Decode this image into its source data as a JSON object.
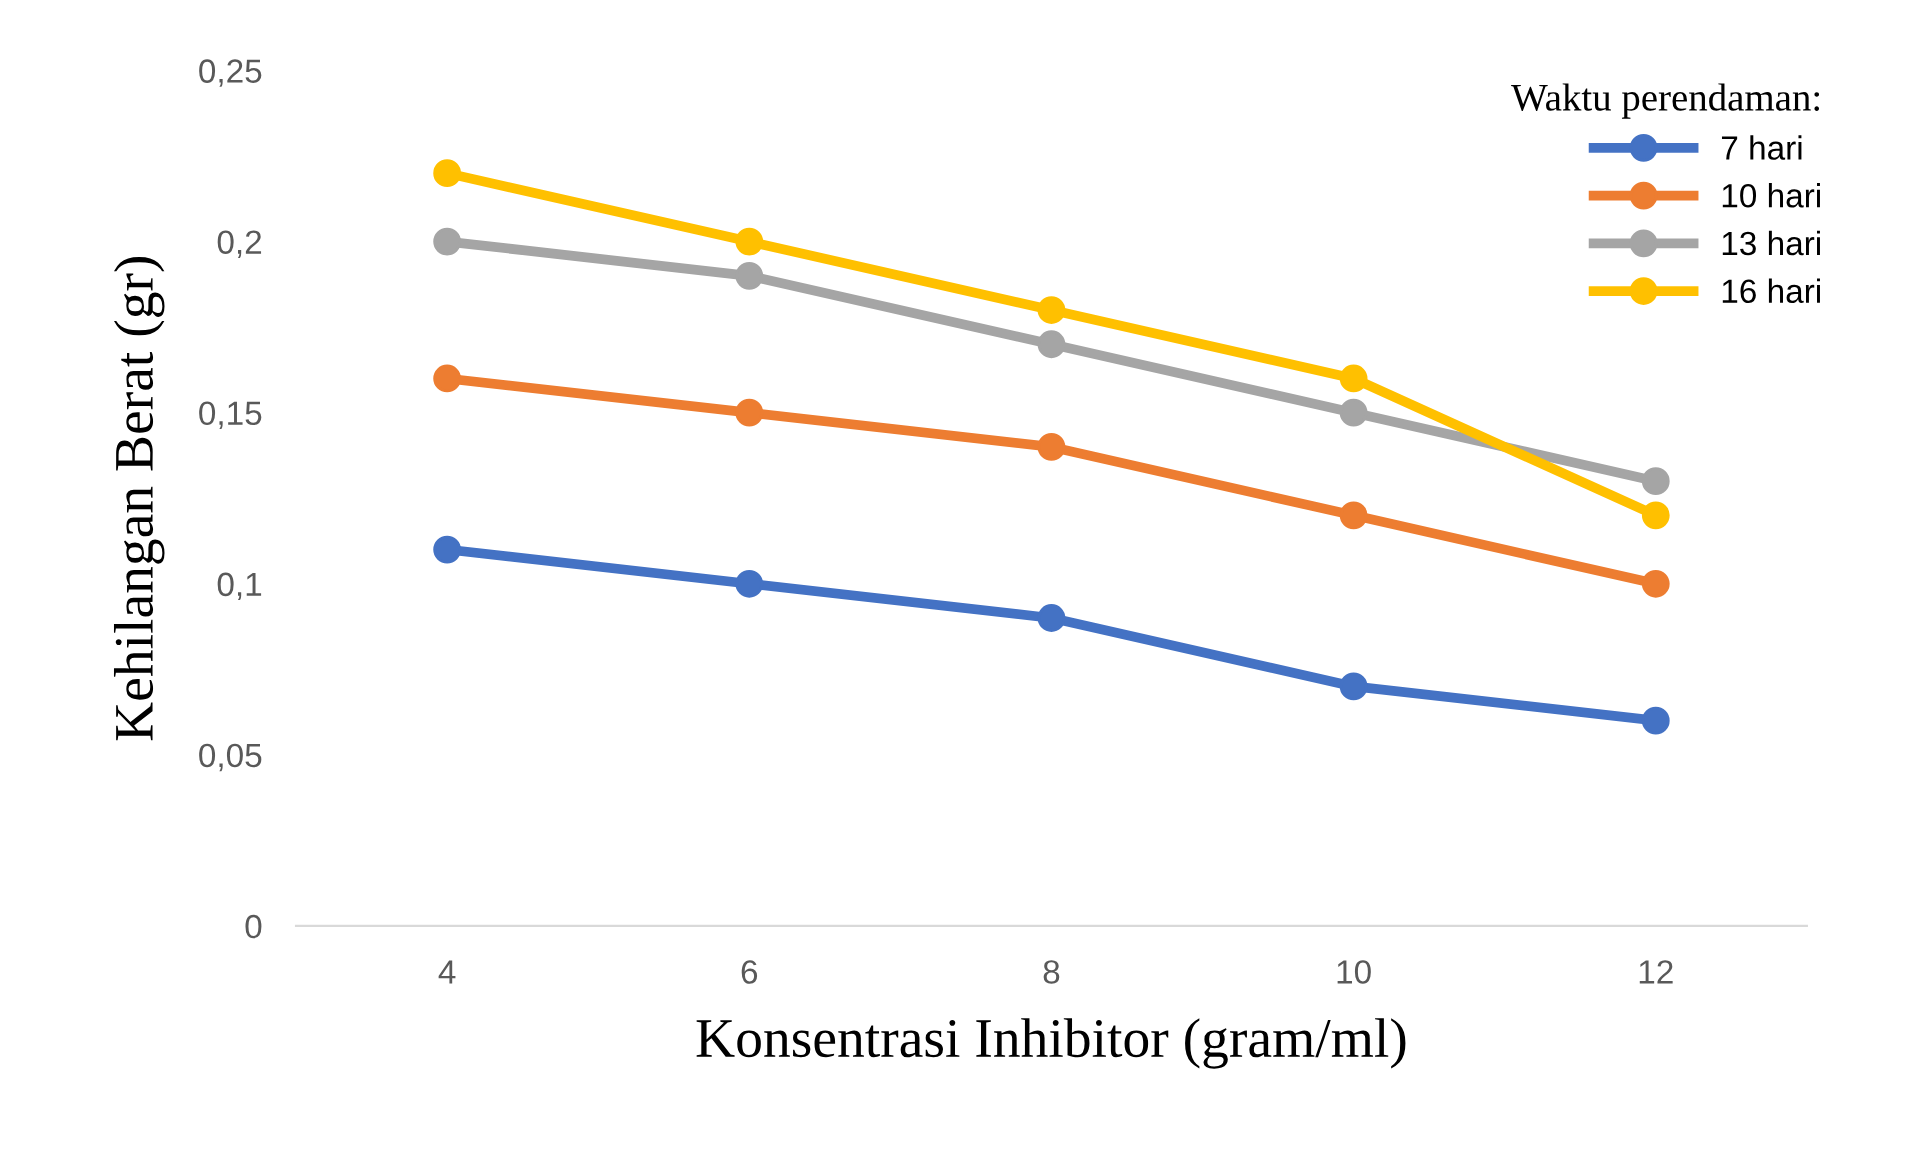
{
  "chart_data": {
    "type": "line",
    "xlabel": "Konsentrasi Inhibitor (gram/ml)",
    "ylabel": "Kehilangan Berat (gr)",
    "legend_title": "Waktu perendaman:",
    "categories": [
      "4",
      "6",
      "8",
      "10",
      "12"
    ],
    "series": [
      {
        "name": "7 hari",
        "color": "#4472c4",
        "values": [
          0.11,
          0.1,
          0.09,
          0.07,
          0.06
        ]
      },
      {
        "name": "10 hari",
        "color": "#ed7d31",
        "values": [
          0.16,
          0.15,
          0.14,
          0.12,
          0.1
        ]
      },
      {
        "name": "13 hari",
        "color": "#a5a5a5",
        "values": [
          0.2,
          0.19,
          0.17,
          0.15,
          0.13
        ]
      },
      {
        "name": "16 hari",
        "color": "#ffc000",
        "values": [
          0.22,
          0.2,
          0.18,
          0.16,
          0.12
        ]
      }
    ],
    "ylim": [
      0,
      0.25
    ],
    "yticks": [
      0,
      {
        "value": 0.05,
        "label": "0,05"
      },
      {
        "value": 0.1,
        "label": "0,1"
      },
      {
        "value": 0.15,
        "label": "0,15"
      },
      {
        "value": 0.2,
        "label": "0,2"
      },
      {
        "value": 0.25,
        "label": "0,25"
      }
    ],
    "grid": false,
    "legend": "top right",
    "marker": "circle",
    "line_style": "solid"
  }
}
